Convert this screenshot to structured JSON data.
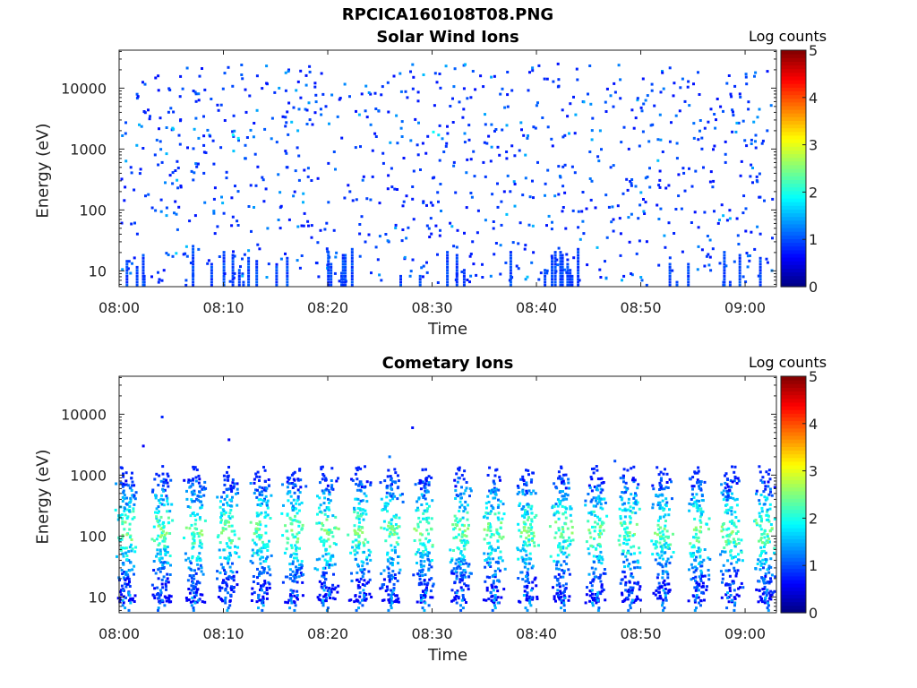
{
  "figure": {
    "title": "RPCICA160108T08.PNG",
    "colorbar_label": "Log counts",
    "colormap": "jet",
    "colors": {
      "low": "#00008f",
      "mid_blue": "#1e5cff",
      "cyan": "#17d7ff",
      "yellow": "#ffea00",
      "red": "#ff1a00",
      "high": "#800000"
    }
  },
  "chart_data": [
    {
      "type": "heatmap",
      "title": "Solar Wind Ions",
      "xlabel": "Time",
      "ylabel": "Energy (eV)",
      "x_ticks": [
        "08:00",
        "08:10",
        "08:20",
        "08:30",
        "08:40",
        "08:50",
        "09:00"
      ],
      "x_tick_minutes": [
        0,
        10,
        20,
        30,
        40,
        50,
        60
      ],
      "x_range_minutes": [
        0,
        63
      ],
      "y_scale": "log",
      "y_ticks": [
        "10",
        "100",
        "1000",
        "10000"
      ],
      "y_tick_values": [
        10,
        100,
        1000,
        10000
      ],
      "y_range": [
        5.5,
        42000
      ],
      "colorbar": {
        "label": "Log counts",
        "range": [
          0,
          5
        ],
        "ticks": [
          "0",
          "1",
          "2",
          "3",
          "4",
          "5"
        ]
      },
      "pattern": "sparse",
      "points": [
        [
          0.5,
          1800,
          1.0
        ],
        [
          1.0,
          500,
          0.8
        ],
        [
          1.8,
          2500,
          1.5
        ],
        [
          2.4,
          170,
          0.9
        ],
        [
          3.0,
          8,
          0.7
        ],
        [
          3.5,
          1400,
          1.1
        ],
        [
          4.0,
          600,
          0.9
        ],
        [
          5.0,
          2200,
          1.6
        ],
        [
          5.5,
          230,
          1.0
        ],
        [
          6.3,
          7,
          1.0
        ],
        [
          7.0,
          9000,
          0.8
        ],
        [
          7.5,
          1500,
          1.3
        ],
        [
          8.0,
          400,
          0.9
        ],
        [
          9.0,
          150,
          0.8
        ],
        [
          10.0,
          9,
          0.7
        ],
        [
          10.8,
          1700,
          1.9
        ],
        [
          11.3,
          1500,
          1.8
        ],
        [
          12.0,
          700,
          1.0
        ],
        [
          13.0,
          250,
          0.9
        ],
        [
          14.0,
          12000,
          0.7
        ],
        [
          15.0,
          1300,
          1.0
        ],
        [
          16.0,
          500,
          0.8
        ],
        [
          17.0,
          2000,
          1.5
        ],
        [
          18.0,
          350,
          0.9
        ],
        [
          19.0,
          8,
          0.8
        ],
        [
          20.0,
          2600,
          1.4
        ],
        [
          20.5,
          900,
          1.0
        ],
        [
          21.0,
          6500,
          0.7
        ],
        [
          22.0,
          200,
          0.9
        ],
        [
          23.0,
          1100,
          0.9
        ],
        [
          24.0,
          2500,
          1.2
        ],
        [
          25.0,
          7,
          0.9
        ],
        [
          26.0,
          480,
          0.9
        ],
        [
          27.0,
          1600,
          1.2
        ],
        [
          27.5,
          7000,
          0.8
        ],
        [
          28.0,
          240,
          0.9
        ],
        [
          29.0,
          8,
          0.7
        ],
        [
          30.0,
          1900,
          1.9
        ],
        [
          30.5,
          1700,
          1.7
        ],
        [
          31.0,
          900,
          1.0
        ],
        [
          32.0,
          600,
          0.8
        ],
        [
          33.0,
          1800,
          1.3
        ],
        [
          34.0,
          9500,
          0.7
        ],
        [
          35.0,
          350,
          0.9
        ],
        [
          36.0,
          2100,
          1.0
        ],
        [
          37.0,
          900,
          0.8
        ],
        [
          38.0,
          12,
          0.8
        ],
        [
          39.0,
          1500,
          1.1
        ],
        [
          40.0,
          600,
          0.9
        ],
        [
          41.0,
          2300,
          1.0
        ],
        [
          42.0,
          180,
          0.8
        ],
        [
          43.0,
          1800,
          1.5
        ],
        [
          44.0,
          7,
          0.8
        ],
        [
          45.0,
          900,
          1.0
        ],
        [
          46.0,
          2000,
          1.4
        ],
        [
          47.0,
          500,
          0.9
        ],
        [
          48.0,
          1300,
          1.0
        ],
        [
          49.0,
          250,
          0.9
        ],
        [
          50.0,
          7,
          1.1
        ],
        [
          51.0,
          2500,
          1.0
        ],
        [
          52.0,
          900,
          0.8
        ],
        [
          53.0,
          7500,
          0.7
        ],
        [
          54.0,
          400,
          0.9
        ],
        [
          55.0,
          1500,
          1.1
        ],
        [
          56.0,
          12,
          0.8
        ],
        [
          57.0,
          2200,
          1.2
        ],
        [
          58.0,
          600,
          0.9
        ],
        [
          59.0,
          1900,
          1.4
        ],
        [
          59.7,
          8,
          1.0
        ],
        [
          60.5,
          1400,
          0.9
        ],
        [
          61.0,
          350,
          0.8
        ],
        [
          62.0,
          2000,
          1.0
        ],
        [
          62.5,
          150,
          0.8
        ]
      ]
    },
    {
      "type": "heatmap",
      "title": "Cometary Ions",
      "xlabel": "Time",
      "ylabel": "Energy (eV)",
      "x_ticks": [
        "08:00",
        "08:10",
        "08:20",
        "08:30",
        "08:40",
        "08:50",
        "09:00"
      ],
      "x_tick_minutes": [
        0,
        10,
        20,
        30,
        40,
        50,
        60
      ],
      "x_range_minutes": [
        0,
        63
      ],
      "y_scale": "log",
      "y_ticks": [
        "10",
        "100",
        "1000",
        "10000"
      ],
      "y_tick_values": [
        10,
        100,
        1000,
        10000
      ],
      "y_range": [
        5.5,
        42000
      ],
      "colorbar": {
        "label": "Log counts",
        "range": [
          0,
          5
        ],
        "ticks": [
          "0",
          "1",
          "2",
          "3",
          "4",
          "5"
        ]
      },
      "pattern": "periodic_bands",
      "band_centers_minutes": [
        0.6,
        4.0,
        7.2,
        10.4,
        13.5,
        16.6,
        19.8,
        23.0,
        26.0,
        29.2,
        32.6,
        35.8,
        39.0,
        42.3,
        45.6,
        48.8,
        52.0,
        55.4,
        58.5,
        61.8
      ],
      "band_energy_range": [
        8,
        900
      ],
      "band_peak_energy": 120,
      "band_peak_log_counts": 2.4,
      "isolated_points": [
        [
          4.0,
          9000,
          0.8
        ],
        [
          2.2,
          3000,
          0.6
        ],
        [
          10.4,
          3800,
          0.6
        ],
        [
          25.8,
          2000,
          1.2
        ],
        [
          28.0,
          6000,
          0.7
        ],
        [
          47.4,
          1700,
          1.0
        ]
      ]
    }
  ]
}
